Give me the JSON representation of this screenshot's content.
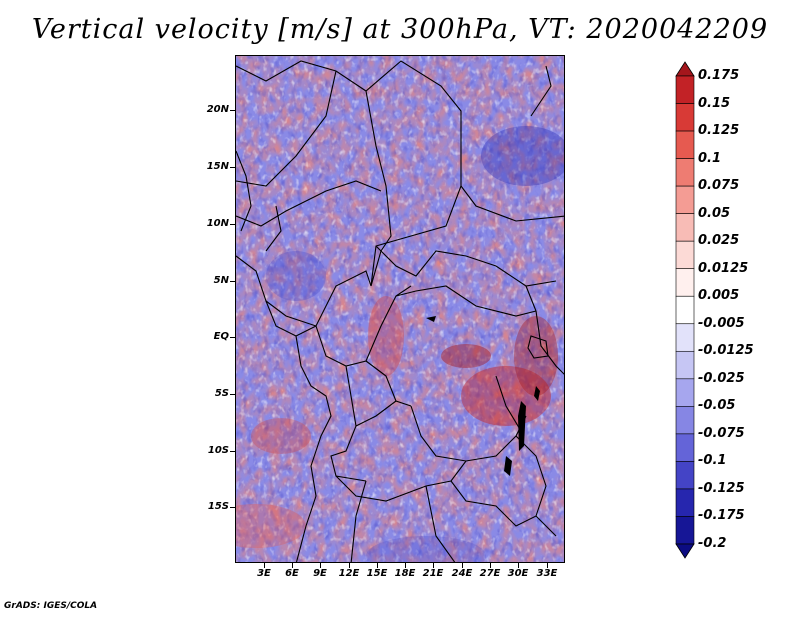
{
  "title": "Vertical velocity [m/s] at 300hPa, VT: 2020042209",
  "footer": "GrADS: IGES/COLA",
  "lat_labels": [
    "20N",
    "15N",
    "10N",
    "5N",
    "EQ",
    "5S",
    "10S",
    "15S"
  ],
  "lon_labels": [
    "3E",
    "6E",
    "9E",
    "12E",
    "15E",
    "18E",
    "21E",
    "24E",
    "27E",
    "30E",
    "33E"
  ],
  "colorbar": {
    "levels": [
      "0.175",
      "0.15",
      "0.125",
      "0.1",
      "0.075",
      "0.05",
      "0.025",
      "0.0125",
      "0.005",
      "-0.005",
      "-0.0125",
      "-0.025",
      "-0.05",
      "-0.075",
      "-0.1",
      "-0.125",
      "-0.175",
      "-0.2"
    ],
    "colors": [
      "#a4161c",
      "#c22226",
      "#d83a36",
      "#e65a50",
      "#ee7c72",
      "#f49c94",
      "#f8bcb6",
      "#fcdad6",
      "#fff0ee",
      "#ffffff",
      "#e2e2fa",
      "#c6c6f4",
      "#a6a6ee",
      "#8686e4",
      "#6464d8",
      "#4444c6",
      "#2626ae",
      "#161696",
      "#0c0c82"
    ]
  },
  "colors": {
    "field_positive": "#e8847c",
    "field_negative": "#8a8ae6",
    "border_line": "#000000"
  }
}
